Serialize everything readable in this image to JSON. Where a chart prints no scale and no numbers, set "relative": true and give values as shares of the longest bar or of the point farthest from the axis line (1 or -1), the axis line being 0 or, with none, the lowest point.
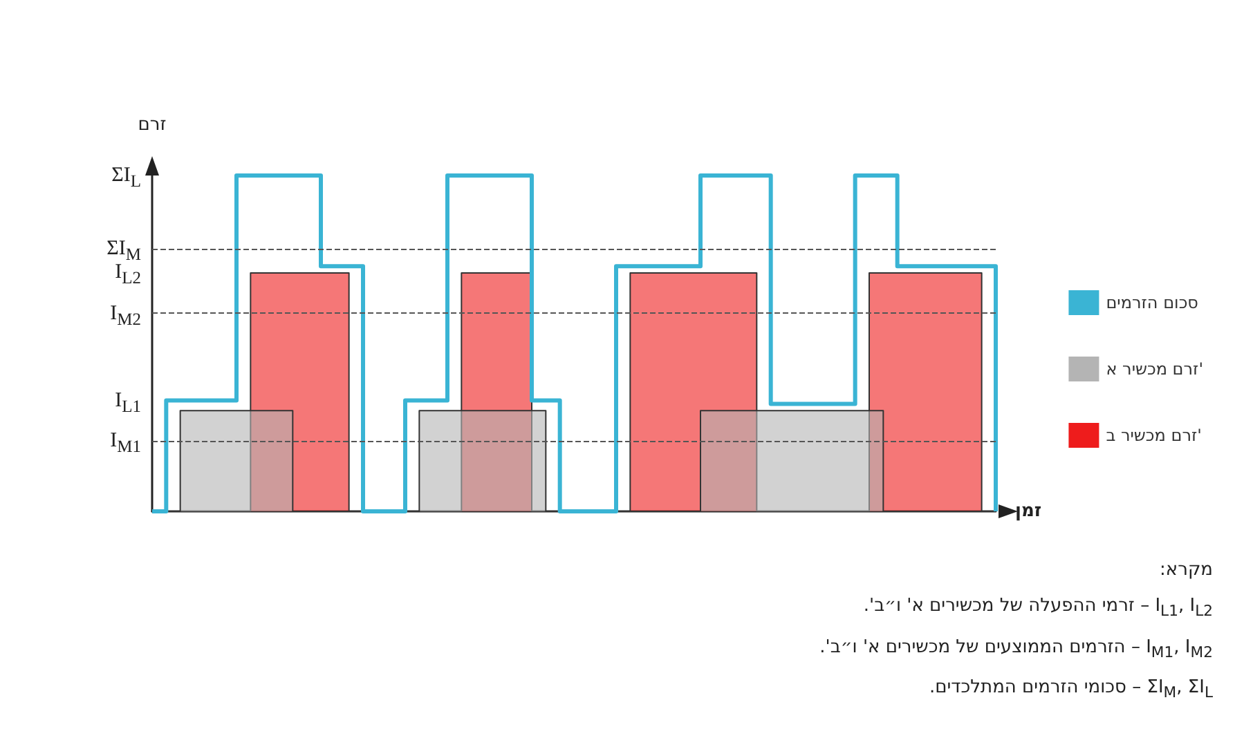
{
  "chart_data": {
    "type": "step",
    "relative": true,
    "ylabel": "זרם",
    "xlabel": "זמן",
    "legend": "right",
    "marker": "none",
    "categories": [
      null,
      null,
      null,
      null,
      null,
      null,
      null,
      null,
      null,
      null,
      null,
      null,
      null,
      null,
      null,
      null,
      null,
      null,
      null,
      null,
      null,
      null,
      null,
      null,
      null,
      null,
      null,
      null,
      null,
      null,
      null,
      null,
      null,
      null,
      null,
      null,
      null,
      null,
      null,
      null,
      null,
      null,
      null,
      null,
      null,
      null,
      null,
      null,
      null,
      null,
      null,
      null,
      null,
      null,
      null,
      null,
      null,
      null,
      null,
      null,
      null
    ],
    "series": [
      {
        "name": "זרם מכשיר ב'",
        "type": "area",
        "color": "#ee1c1c",
        "values": [
          0,
          0,
          0,
          0,
          0,
          0,
          0,
          0.71,
          0.71,
          0.71,
          0.71,
          0.71,
          0.71,
          0.71,
          0,
          0,
          0,
          0,
          0,
          0,
          0,
          0,
          0.71,
          0.71,
          0.71,
          0.71,
          0.71,
          0,
          0,
          0,
          0,
          0,
          0,
          0,
          0.71,
          0.71,
          0.71,
          0.71,
          0.71,
          0.71,
          0.71,
          0.71,
          0.71,
          0,
          0,
          0,
          0,
          0,
          0,
          0,
          0,
          0.71,
          0.71,
          0.71,
          0.71,
          0.71,
          0.71,
          0.71,
          0.71,
          0,
          0
        ]
      },
      {
        "name": "זרם מכשיר א'",
        "type": "area",
        "color": "#b4b4b4",
        "values": [
          0,
          0,
          0.3,
          0.3,
          0.3,
          0.3,
          0.3,
          0.3,
          0.3,
          0.3,
          0,
          0,
          0,
          0,
          0,
          0,
          0,
          0,
          0,
          0.3,
          0.3,
          0.3,
          0.3,
          0.3,
          0.3,
          0.3,
          0.3,
          0.3,
          0,
          0,
          0,
          0,
          0,
          0,
          0,
          0,
          0,
          0,
          0,
          0.3,
          0.3,
          0.3,
          0.3,
          0.3,
          0.3,
          0.3,
          0.3,
          0.3,
          0.3,
          0.3,
          0.3,
          0.3,
          0,
          0,
          0,
          0,
          0,
          0,
          0,
          0,
          0
        ]
      },
      {
        "name": "סכום הזרמים",
        "color": "#3ab4d4",
        "values": [
          0,
          0.33,
          0.33,
          0.33,
          0.33,
          0.33,
          1,
          1,
          1,
          1,
          1,
          1,
          0.73,
          0.73,
          0.73,
          0,
          0,
          0,
          0.33,
          0.33,
          0.33,
          1,
          1,
          1,
          1,
          1,
          1,
          0.33,
          0.33,
          0,
          0,
          0,
          0,
          0.73,
          0.73,
          0.73,
          0.73,
          0.73,
          0.73,
          1,
          1,
          1,
          1,
          1,
          0.32,
          0.32,
          0.32,
          0.32,
          0.32,
          0.32,
          1,
          1,
          1,
          0.73,
          0.73,
          0.73,
          0.73,
          0.73,
          0.73,
          0.73,
          0
        ]
      }
    ],
    "ref_lines": [
      {
        "axis": "y",
        "value": 0.78,
        "label": "ΣI$_{M}$",
        "line_style": "dashed",
        "color": "#555555"
      },
      {
        "axis": "y",
        "value": 0.59,
        "label": "I$_{M2}$",
        "line_style": "dashed",
        "color": "#555555"
      },
      {
        "axis": "y",
        "value": 0.21,
        "label": "I$_{M1}$",
        "line_style": "dashed",
        "color": "#555555"
      }
    ],
    "annotations": [
      "ΣI$_{L}$",
      "I$_{L2}$",
      "I$_{L1}$",
      "מקרא:",
      "I$_{L1}$, I$_{L2}$ – זרמי ההפעלה של מכשירים א' ו״ב'.",
      "I$_{M1}$, I$_{M2}$ – הזרמים הממוצעים של מכשירים א' ו״ב'.",
      "ΣI$_{M}$, ΣI$_{L}$ – סכומי הזרמים המתלכדים."
    ]
  }
}
